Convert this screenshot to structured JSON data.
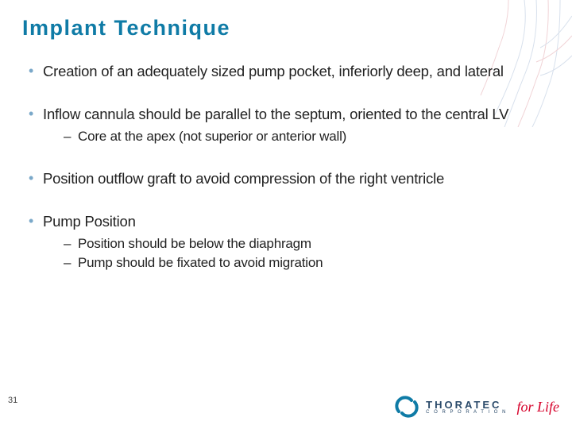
{
  "colors": {
    "title": "#0f7ba6",
    "bullet_marker": "#7aa8c9",
    "body_text": "#222222",
    "brand_text": "#2a4a6a",
    "forlife": "#d6002a",
    "logo_ring": "#0f7ba6",
    "deco_blue": "#2a5a9a",
    "deco_red": "#b01020",
    "background": "#ffffff"
  },
  "typography": {
    "title_fontsize": 27,
    "title_letter_spacing": 1.5,
    "bullet_fontsize": 18.5,
    "sub_fontsize": 17,
    "pagenum_fontsize": 11,
    "brand_fontsize": 13
  },
  "title": "Implant Technique",
  "bullets": [
    {
      "text": "Creation of an adequately sized pump pocket, inferiorly deep, and lateral",
      "sub": []
    },
    {
      "text": "Inflow cannula should be parallel to the septum, oriented to the central LV",
      "sub": [
        "Core at the apex (not superior or anterior wall)"
      ]
    },
    {
      "text": "Position outflow graft to avoid compression of the right ventricle",
      "sub": []
    },
    {
      "text": "Pump Position",
      "sub": [
        "Position should be below the diaphragm",
        "Pump should be fixated to avoid migration"
      ]
    }
  ],
  "page_number": "31",
  "footer": {
    "brand_name": "THORATEC",
    "brand_sub": "C O R P O R A T I O N",
    "tagline": "for Life"
  }
}
